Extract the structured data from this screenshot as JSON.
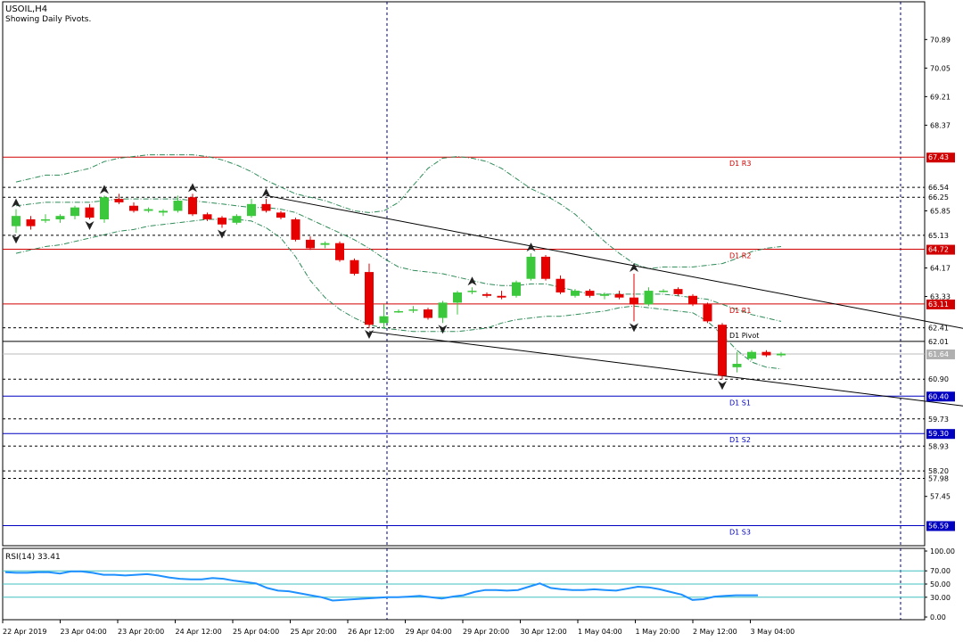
{
  "header": {
    "symbol": "USOIL,H4",
    "subtitle": "Showing Daily Pivots."
  },
  "rsi_label": "RSI(14) 33.41",
  "colors": {
    "bull": "#3cc83c",
    "bear": "#e60000",
    "pivot_resistance": "#d00000",
    "pivot_support": "#0000c0",
    "rsi_line": "#1e90ff",
    "level_line": "#000000"
  },
  "chart_data": [
    {
      "type": "candlestick",
      "title": "USOIL,H4",
      "ylim": [
        56.0,
        72.0
      ],
      "y_ticks": [
        "70.89",
        "70.05",
        "69.21",
        "68.37",
        "65.85",
        "64.17",
        "63.33",
        "57.45"
      ],
      "x_ticks": [
        "22 Apr 2019",
        "23 Apr 04:00",
        "23 Apr 20:00",
        "24 Apr 12:00",
        "25 Apr 04:00",
        "25 Apr 20:00",
        "26 Apr 12:00",
        "29 Apr 04:00",
        "29 Apr 20:00",
        "30 Apr 12:00",
        "1 May 04:00",
        "1 May 20:00",
        "2 May 12:00",
        "3 May 04:00"
      ],
      "candles": [
        {
          "o": 65.4,
          "h": 65.9,
          "l": 65.2,
          "c": 65.7
        },
        {
          "o": 65.6,
          "h": 65.7,
          "l": 65.3,
          "c": 65.4
        },
        {
          "o": 65.6,
          "h": 65.75,
          "l": 65.5,
          "c": 65.6
        },
        {
          "o": 65.6,
          "h": 65.75,
          "l": 65.5,
          "c": 65.7
        },
        {
          "o": 65.7,
          "h": 66.0,
          "l": 65.6,
          "c": 65.95
        },
        {
          "o": 65.95,
          "h": 66.05,
          "l": 65.6,
          "c": 65.65
        },
        {
          "o": 65.6,
          "h": 66.3,
          "l": 65.5,
          "c": 66.25
        },
        {
          "o": 66.2,
          "h": 66.35,
          "l": 66.05,
          "c": 66.1
        },
        {
          "o": 66.0,
          "h": 66.1,
          "l": 65.8,
          "c": 65.85
        },
        {
          "o": 65.85,
          "h": 65.95,
          "l": 65.8,
          "c": 65.9
        },
        {
          "o": 65.8,
          "h": 65.9,
          "l": 65.7,
          "c": 65.85
        },
        {
          "o": 65.85,
          "h": 66.3,
          "l": 65.8,
          "c": 66.15
        },
        {
          "o": 66.25,
          "h": 66.35,
          "l": 65.7,
          "c": 65.75
        },
        {
          "o": 65.75,
          "h": 65.8,
          "l": 65.55,
          "c": 65.6
        },
        {
          "o": 65.65,
          "h": 65.7,
          "l": 65.35,
          "c": 65.45
        },
        {
          "o": 65.5,
          "h": 65.75,
          "l": 65.45,
          "c": 65.7
        },
        {
          "o": 65.7,
          "h": 66.2,
          "l": 65.65,
          "c": 66.05
        },
        {
          "o": 66.05,
          "h": 66.2,
          "l": 65.8,
          "c": 65.85
        },
        {
          "o": 65.8,
          "h": 65.85,
          "l": 65.6,
          "c": 65.65
        },
        {
          "o": 65.6,
          "h": 65.65,
          "l": 64.95,
          "c": 65.0
        },
        {
          "o": 65.0,
          "h": 65.1,
          "l": 64.7,
          "c": 64.75
        },
        {
          "o": 64.85,
          "h": 64.95,
          "l": 64.75,
          "c": 64.9
        },
        {
          "o": 64.9,
          "h": 64.95,
          "l": 64.35,
          "c": 64.4
        },
        {
          "o": 64.4,
          "h": 64.45,
          "l": 63.95,
          "c": 64.0
        },
        {
          "o": 64.05,
          "h": 64.3,
          "l": 62.4,
          "c": 62.5
        },
        {
          "o": 62.55,
          "h": 63.1,
          "l": 62.4,
          "c": 62.75
        },
        {
          "o": 62.9,
          "h": 62.95,
          "l": 62.85,
          "c": 62.9
        },
        {
          "o": 62.95,
          "h": 63.05,
          "l": 62.85,
          "c": 62.95
        },
        {
          "o": 62.95,
          "h": 63.0,
          "l": 62.65,
          "c": 62.7
        },
        {
          "o": 62.7,
          "h": 63.2,
          "l": 62.55,
          "c": 63.15
        },
        {
          "o": 63.15,
          "h": 63.5,
          "l": 62.8,
          "c": 63.45
        },
        {
          "o": 63.5,
          "h": 63.6,
          "l": 63.4,
          "c": 63.5
        },
        {
          "o": 63.4,
          "h": 63.45,
          "l": 63.3,
          "c": 63.35
        },
        {
          "o": 63.35,
          "h": 63.5,
          "l": 63.25,
          "c": 63.3
        },
        {
          "o": 63.35,
          "h": 63.8,
          "l": 63.3,
          "c": 63.75
        },
        {
          "o": 63.85,
          "h": 64.6,
          "l": 63.8,
          "c": 64.5
        },
        {
          "o": 64.5,
          "h": 64.55,
          "l": 63.8,
          "c": 63.85
        },
        {
          "o": 63.85,
          "h": 63.95,
          "l": 63.4,
          "c": 63.45
        },
        {
          "o": 63.35,
          "h": 63.55,
          "l": 63.3,
          "c": 63.5
        },
        {
          "o": 63.5,
          "h": 63.55,
          "l": 63.3,
          "c": 63.35
        },
        {
          "o": 63.35,
          "h": 63.45,
          "l": 63.25,
          "c": 63.4
        },
        {
          "o": 63.4,
          "h": 63.5,
          "l": 63.25,
          "c": 63.3
        },
        {
          "o": 63.3,
          "h": 64.0,
          "l": 62.6,
          "c": 63.1
        },
        {
          "o": 63.1,
          "h": 63.6,
          "l": 63.05,
          "c": 63.5
        },
        {
          "o": 63.5,
          "h": 63.55,
          "l": 63.45,
          "c": 63.5
        },
        {
          "o": 63.55,
          "h": 63.6,
          "l": 63.35,
          "c": 63.4
        },
        {
          "o": 63.35,
          "h": 63.4,
          "l": 63.05,
          "c": 63.1
        },
        {
          "o": 63.1,
          "h": 63.15,
          "l": 62.55,
          "c": 62.6
        },
        {
          "o": 62.5,
          "h": 62.55,
          "l": 60.9,
          "c": 61.0
        },
        {
          "o": 61.25,
          "h": 61.7,
          "l": 61.1,
          "c": 61.35
        },
        {
          "o": 61.5,
          "h": 61.75,
          "l": 61.45,
          "c": 61.7
        },
        {
          "o": 61.7,
          "h": 61.75,
          "l": 61.55,
          "c": 61.6
        },
        {
          "o": 61.6,
          "h": 61.7,
          "l": 61.55,
          "c": 61.65
        }
      ],
      "pivots": [
        {
          "label": "D1 R3",
          "value": 67.43,
          "price": "67.43",
          "kind": "resistance"
        },
        {
          "label": "D1 R2",
          "value": 64.72,
          "price": "64.72",
          "kind": "resistance"
        },
        {
          "label": "D1 R1",
          "value": 63.11,
          "price": "63.11",
          "kind": "resistance"
        },
        {
          "label": "D1 Pivot",
          "value": 62.01,
          "price": "62.01",
          "kind": "pivot"
        },
        {
          "label": "D1 S1",
          "value": 60.4,
          "price": "60.40",
          "kind": "support"
        },
        {
          "label": "D1 S2",
          "value": 59.3,
          "price": "59.30",
          "kind": "support"
        },
        {
          "label": "D1 S3",
          "value": 56.59,
          "price": "56.59",
          "kind": "support"
        }
      ],
      "dashed_levels": [
        {
          "value": 66.54,
          "price": "66.54"
        },
        {
          "value": 66.25,
          "price": "66.25"
        },
        {
          "value": 65.13,
          "price": "65.13"
        },
        {
          "value": 62.41,
          "price": "62.41"
        },
        {
          "value": 60.9,
          "price": "60.90"
        },
        {
          "value": 59.73,
          "price": "59.73"
        },
        {
          "value": 58.93,
          "price": "58.93"
        },
        {
          "value": 58.2,
          "price": "58.20"
        },
        {
          "value": 57.98,
          "price": "57.98"
        }
      ],
      "current_price": {
        "value": 61.64,
        "price": "61.64"
      },
      "bollinger_upper": [
        66.7,
        66.8,
        66.9,
        66.9,
        67.0,
        67.1,
        67.3,
        67.4,
        67.45,
        67.5,
        67.5,
        67.5,
        67.5,
        67.45,
        67.35,
        67.2,
        67.0,
        66.75,
        66.55,
        66.35,
        66.25,
        66.15,
        66.0,
        65.85,
        65.8,
        65.85,
        66.1,
        66.6,
        67.1,
        67.4,
        67.45,
        67.4,
        67.3,
        67.1,
        66.8,
        66.5,
        66.3,
        66.05,
        65.75,
        65.35,
        64.95,
        64.6,
        64.3,
        64.15,
        64.2,
        64.2,
        64.2,
        64.25,
        64.3,
        64.45,
        64.65,
        64.75,
        64.8
      ],
      "bollinger_mid": [
        66.0,
        66.05,
        66.1,
        66.1,
        66.1,
        66.1,
        66.15,
        66.2,
        66.2,
        66.2,
        66.2,
        66.2,
        66.15,
        66.1,
        66.05,
        66.0,
        65.95,
        65.95,
        65.9,
        65.8,
        65.6,
        65.4,
        65.2,
        65.0,
        64.75,
        64.45,
        64.2,
        64.1,
        64.05,
        64.0,
        63.9,
        63.8,
        63.7,
        63.65,
        63.65,
        63.7,
        63.7,
        63.6,
        63.5,
        63.4,
        63.4,
        63.4,
        63.4,
        63.4,
        63.4,
        63.35,
        63.3,
        63.25,
        63.1,
        62.95,
        62.8,
        62.7,
        62.6
      ],
      "bollinger_lower": [
        64.6,
        64.7,
        64.8,
        64.85,
        64.95,
        65.05,
        65.15,
        65.25,
        65.3,
        65.4,
        65.45,
        65.5,
        65.55,
        65.6,
        65.6,
        65.6,
        65.55,
        65.35,
        65.05,
        64.5,
        63.8,
        63.3,
        62.95,
        62.7,
        62.5,
        62.4,
        62.35,
        62.3,
        62.3,
        62.3,
        62.3,
        62.35,
        62.4,
        62.55,
        62.65,
        62.7,
        62.75,
        62.75,
        62.8,
        62.85,
        62.9,
        63.0,
        63.05,
        63.0,
        62.95,
        62.9,
        62.85,
        62.6,
        62.2,
        61.75,
        61.4,
        61.25,
        61.2
      ],
      "fractals": [
        {
          "i": 0,
          "dir": "up"
        },
        {
          "i": 0,
          "dir": "down"
        },
        {
          "i": 6,
          "dir": "up"
        },
        {
          "i": 5,
          "dir": "down"
        },
        {
          "i": 12,
          "dir": "up"
        },
        {
          "i": 14,
          "dir": "down"
        },
        {
          "i": 17,
          "dir": "up"
        },
        {
          "i": 24,
          "dir": "down"
        },
        {
          "i": 29,
          "dir": "down"
        },
        {
          "i": 31,
          "dir": "up"
        },
        {
          "i": 35,
          "dir": "up"
        },
        {
          "i": 42,
          "dir": "up"
        },
        {
          "i": 42,
          "dir": "down"
        },
        {
          "i": 48,
          "dir": "down"
        }
      ],
      "trendlines": [
        {
          "from": {
            "i": 17,
            "v": 66.3
          },
          "to": {
            "i": 65.5,
            "v": 62.3
          }
        },
        {
          "from": {
            "i": 24,
            "v": 62.3
          },
          "to": {
            "i": 65.5,
            "v": 60.05
          }
        }
      ]
    },
    {
      "type": "line",
      "title": "RSI(14) 33.41",
      "ylim": [
        0,
        100
      ],
      "y_ticks": [
        "100.00",
        "70.00",
        "50.00",
        "30.00",
        "0.00"
      ],
      "levels": [
        70,
        50,
        30
      ],
      "values": [
        68,
        67,
        67,
        68,
        68,
        66,
        69,
        69,
        67,
        64,
        64,
        63,
        64,
        65,
        63,
        60,
        58,
        57,
        57,
        59,
        58,
        55,
        53,
        51,
        44,
        40,
        39,
        36,
        33,
        30,
        25,
        26,
        27,
        28,
        29,
        30,
        30,
        31,
        32,
        30,
        28,
        31,
        33,
        38,
        41,
        41,
        40,
        41,
        46,
        51,
        44,
        42,
        41,
        41,
        42,
        41,
        40,
        43,
        46,
        45,
        42,
        38,
        34,
        26,
        27,
        31,
        32,
        33,
        33,
        33
      ]
    }
  ]
}
